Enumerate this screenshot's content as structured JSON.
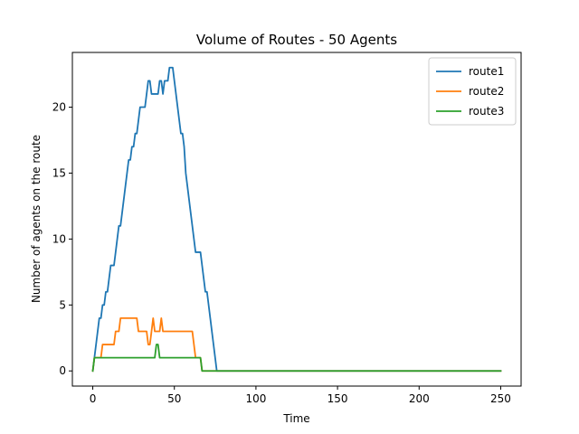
{
  "chart_data": {
    "type": "line",
    "title": "Volume of Routes - 50 Agents",
    "xlabel": "Time",
    "ylabel": "Number of agents on the route",
    "xlim": [
      -12.5,
      262.5
    ],
    "ylim": [
      -1.15,
      24.15
    ],
    "xticks": [
      0,
      50,
      100,
      150,
      200,
      250
    ],
    "yticks": [
      0,
      5,
      10,
      15,
      20
    ],
    "legend_position": "top-right",
    "grid": false,
    "series": [
      {
        "name": "route1",
        "color": "#1f77b4",
        "points": [
          [
            0,
            0
          ],
          [
            1,
            1
          ],
          [
            3,
            3
          ],
          [
            4,
            4
          ],
          [
            5,
            4
          ],
          [
            6,
            5
          ],
          [
            7,
            5
          ],
          [
            8,
            6
          ],
          [
            9,
            6
          ],
          [
            10,
            7
          ],
          [
            11,
            8
          ],
          [
            13,
            8
          ],
          [
            14,
            9
          ],
          [
            15,
            10
          ],
          [
            16,
            11
          ],
          [
            17,
            11
          ],
          [
            18,
            12
          ],
          [
            19,
            13
          ],
          [
            20,
            14
          ],
          [
            21,
            15
          ],
          [
            22,
            16
          ],
          [
            23,
            16
          ],
          [
            24,
            17
          ],
          [
            25,
            17
          ],
          [
            26,
            18
          ],
          [
            27,
            18
          ],
          [
            28,
            19
          ],
          [
            29,
            20
          ],
          [
            32,
            20
          ],
          [
            33,
            21
          ],
          [
            34,
            22
          ],
          [
            35,
            22
          ],
          [
            36,
            21
          ],
          [
            40,
            21
          ],
          [
            41,
            22
          ],
          [
            42,
            22
          ],
          [
            43,
            21
          ],
          [
            44,
            22
          ],
          [
            46,
            22
          ],
          [
            47,
            23
          ],
          [
            49,
            23
          ],
          [
            50,
            22
          ],
          [
            51,
            21
          ],
          [
            52,
            20
          ],
          [
            53,
            19
          ],
          [
            54,
            18
          ],
          [
            55,
            18
          ],
          [
            56,
            17
          ],
          [
            57,
            15
          ],
          [
            58,
            14
          ],
          [
            59,
            13
          ],
          [
            60,
            12
          ],
          [
            61,
            11
          ],
          [
            62,
            10
          ],
          [
            63,
            9
          ],
          [
            66,
            9
          ],
          [
            67,
            8
          ],
          [
            68,
            7
          ],
          [
            69,
            6
          ],
          [
            70,
            6
          ],
          [
            71,
            5
          ],
          [
            72,
            4
          ],
          [
            73,
            3
          ],
          [
            74,
            2
          ],
          [
            75,
            1
          ],
          [
            76,
            0
          ],
          [
            250,
            0
          ]
        ]
      },
      {
        "name": "route2",
        "color": "#ff7f0e",
        "points": [
          [
            0,
            0
          ],
          [
            1,
            1
          ],
          [
            5,
            1
          ],
          [
            6,
            2
          ],
          [
            13,
            2
          ],
          [
            14,
            3
          ],
          [
            16,
            3
          ],
          [
            17,
            4
          ],
          [
            27,
            4
          ],
          [
            28,
            3
          ],
          [
            33,
            3
          ],
          [
            34,
            2
          ],
          [
            35,
            2
          ],
          [
            36,
            3
          ],
          [
            37,
            4
          ],
          [
            38,
            3
          ],
          [
            41,
            3
          ],
          [
            42,
            4
          ],
          [
            43,
            3
          ],
          [
            61,
            3
          ],
          [
            62,
            2
          ],
          [
            63,
            1
          ],
          [
            66,
            1
          ],
          [
            67,
            0
          ],
          [
            250,
            0
          ]
        ]
      },
      {
        "name": "route3",
        "color": "#2ca02c",
        "points": [
          [
            0,
            0
          ],
          [
            1,
            1
          ],
          [
            38,
            1
          ],
          [
            39,
            2
          ],
          [
            40,
            2
          ],
          [
            41,
            1
          ],
          [
            66,
            1
          ],
          [
            67,
            0
          ],
          [
            250,
            0
          ]
        ]
      }
    ]
  }
}
